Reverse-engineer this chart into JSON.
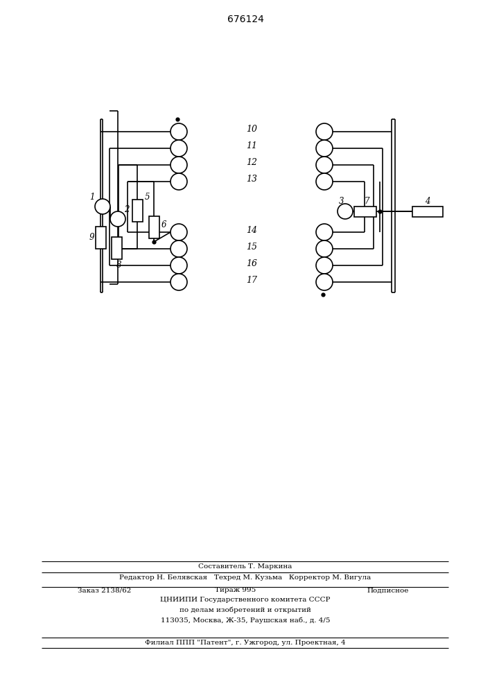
{
  "title": "676124",
  "bg": "#ffffff",
  "lc": "#000000",
  "footer": [
    "Составитель Т. Маркина",
    "Редактор Н. Белявская   Техред М. Кузьма   Корректор М. Вигула",
    "Заказ 2138/62",
    "Тираж 995",
    "Подписное",
    "ЦНИИПИ Государственного комитета СССР",
    "по делам изобретений и открытий",
    "113035, Москва, Ж-35, Раушская наб., д. 4/5",
    "Филиал ППП \"Патент\", г. Ужгород, ул. Проектная, 4"
  ],
  "labels_top": [
    "10",
    "11",
    "12",
    "13"
  ],
  "labels_bot": [
    "14",
    "15",
    "16",
    "17"
  ],
  "circ_r": 12,
  "lw": 1.2
}
